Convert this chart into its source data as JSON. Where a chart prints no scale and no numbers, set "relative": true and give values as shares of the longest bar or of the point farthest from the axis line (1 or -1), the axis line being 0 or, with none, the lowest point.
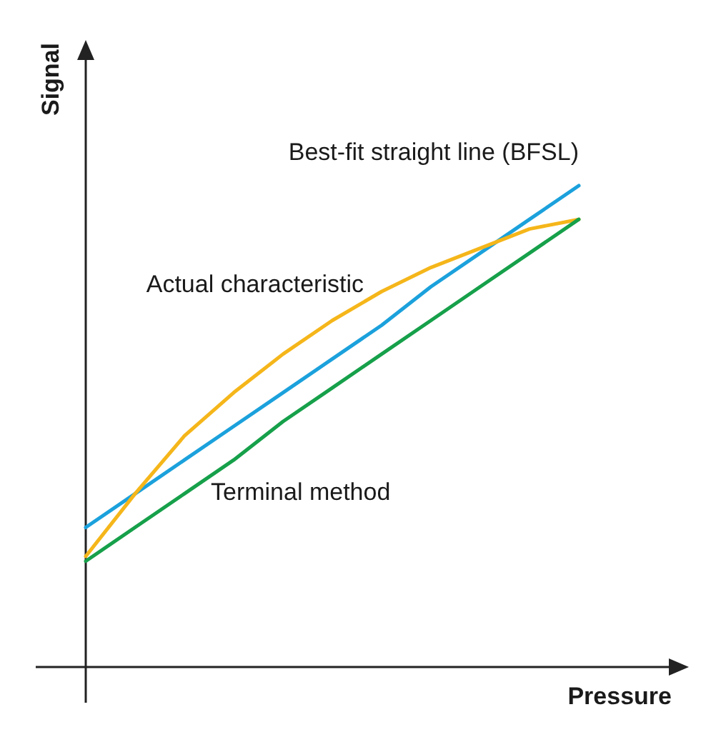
{
  "chart_data": {
    "type": "line",
    "xlabel": "Pressure",
    "ylabel": "Signal",
    "relative": true,
    "categories": [
      null,
      null,
      null,
      null,
      null,
      null,
      null,
      null,
      null,
      null,
      null
    ],
    "marker": "none",
    "line_style": "solid",
    "series": [
      {
        "name": "Best-fit straight line (BFSL)",
        "color": "#1ba1dc",
        "values": [
          0.29,
          0.36,
          0.43,
          0.5,
          0.57,
          0.64,
          0.71,
          0.79,
          0.86,
          0.93,
          1.0
        ]
      },
      {
        "name": "Actual characteristic",
        "color": "#f5b61a",
        "values": [
          0.23,
          0.36,
          0.48,
          0.57,
          0.65,
          0.72,
          0.78,
          0.83,
          0.87,
          0.91,
          0.93
        ]
      },
      {
        "name": "Terminal method",
        "color": "#16a04a",
        "values": [
          0.22,
          0.29,
          0.36,
          0.43,
          0.51,
          0.58,
          0.65,
          0.72,
          0.79,
          0.86,
          0.93
        ]
      }
    ]
  }
}
